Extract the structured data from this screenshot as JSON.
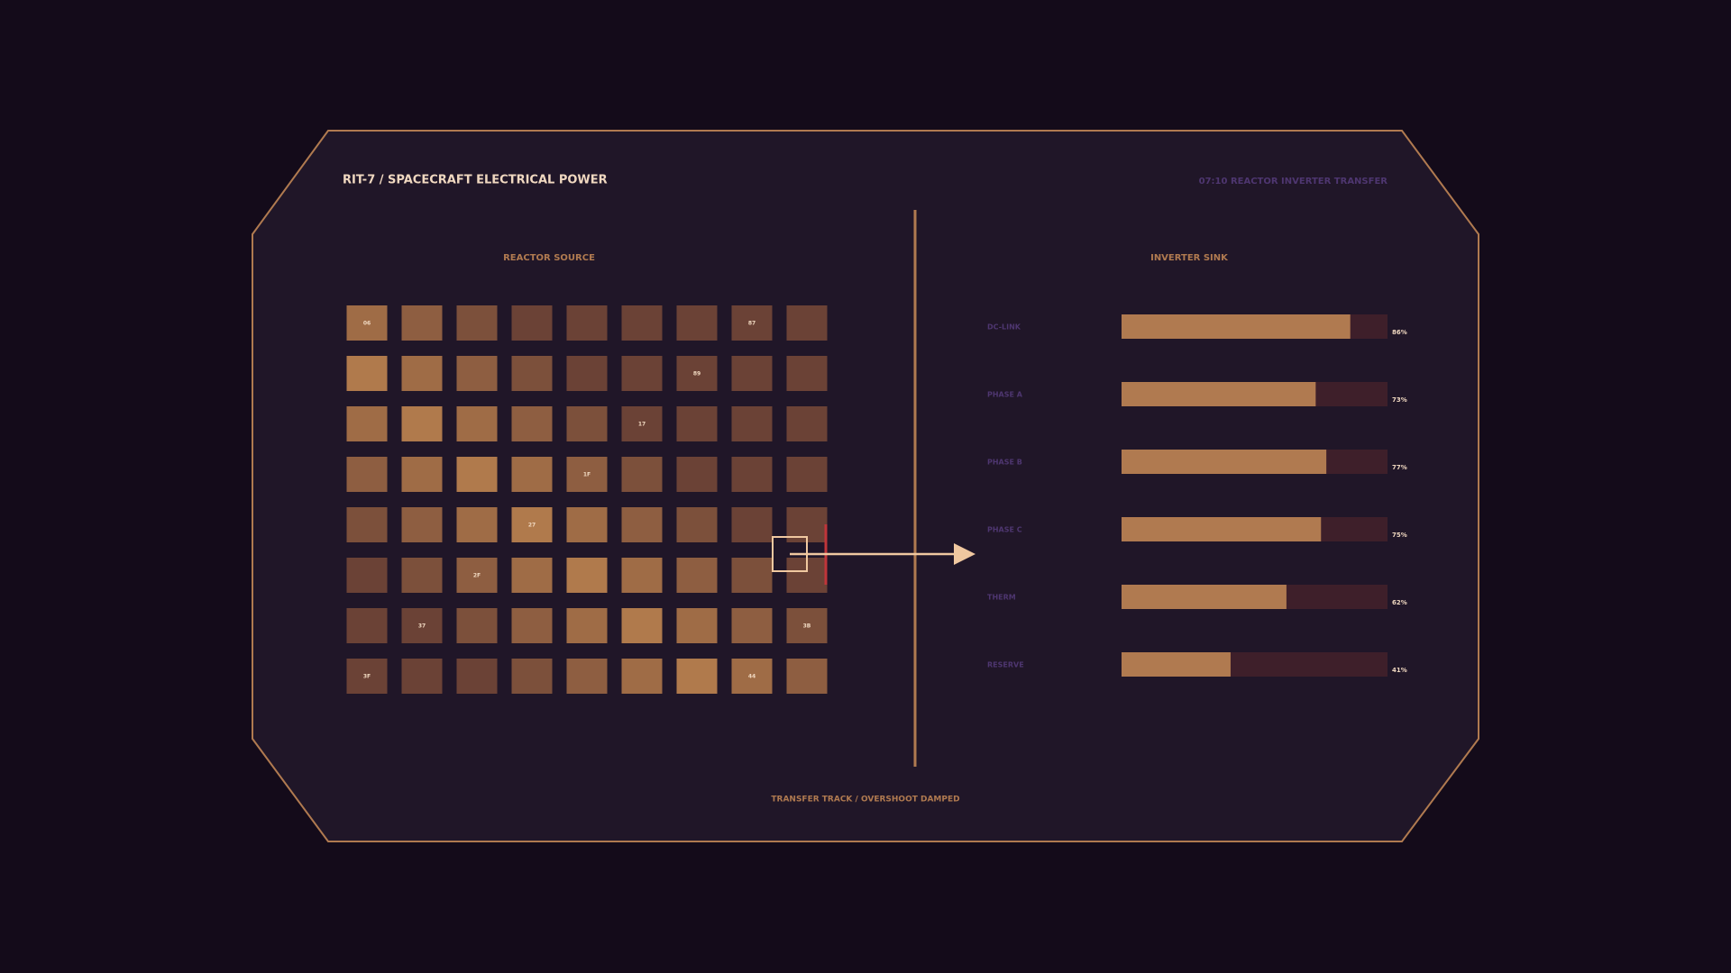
{
  "header": {
    "title": "RIT-7  /  SPACECRAFT ELECTRICAL POWER",
    "status": "07:10  REACTOR INVERTER TRANSFER"
  },
  "source": {
    "title": "REACTOR SOURCE",
    "grid": [
      [
        "06",
        null,
        null,
        null,
        null,
        null,
        null,
        "87",
        null
      ],
      [
        null,
        null,
        null,
        null,
        null,
        null,
        "89",
        null,
        null
      ],
      [
        null,
        null,
        null,
        null,
        null,
        "17",
        null,
        null,
        null
      ],
      [
        null,
        null,
        null,
        null,
        "1F",
        null,
        null,
        null,
        null
      ],
      [
        null,
        null,
        null,
        "27",
        null,
        null,
        null,
        null,
        null
      ],
      [
        null,
        null,
        "2F",
        null,
        null,
        null,
        null,
        null,
        null
      ],
      [
        null,
        "37",
        null,
        null,
        null,
        null,
        null,
        null,
        "3B"
      ],
      [
        "3F",
        null,
        null,
        null,
        null,
        null,
        null,
        "44",
        null
      ]
    ]
  },
  "footer": "TRANSFER TRACK / OVERSHOOT DAMPED",
  "chart_data": {
    "type": "hbar",
    "title": "INVERTER SINK",
    "categories": [
      "DC-LINK",
      "PHASE A",
      "PHASE B",
      "PHASE C",
      "THERM",
      "RESERVE"
    ],
    "values": [
      86,
      73,
      77,
      75,
      62,
      41
    ],
    "value_labels": [
      "86%",
      "73%",
      "77%",
      "75%",
      "62%",
      "41%"
    ],
    "xlim": [
      0,
      100
    ],
    "color": "#b07a50",
    "track_color": "#3e1f2a"
  }
}
